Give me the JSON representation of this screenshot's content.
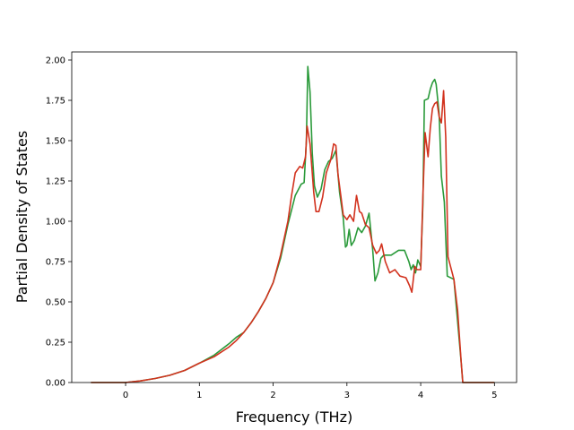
{
  "chart_data": {
    "type": "line",
    "title": "",
    "xlabel": "Frequency (THz)",
    "ylabel": "Partial Density of States",
    "xlim": [
      -0.73,
      5.3
    ],
    "ylim": [
      0,
      2.05
    ],
    "grid": false,
    "legend": "none",
    "x_ticks": [
      "0",
      "1",
      "2",
      "3",
      "4",
      "5"
    ],
    "y_ticks": [
      "0.00",
      "0.25",
      "0.50",
      "0.75",
      "1.00",
      "1.25",
      "1.50",
      "1.75",
      "2.00"
    ],
    "series": [
      {
        "color": "#2a9a3a",
        "points": [
          [
            -0.47,
            0
          ],
          [
            0,
            0
          ],
          [
            0.2,
            0.01
          ],
          [
            0.4,
            0.025
          ],
          [
            0.6,
            0.045
          ],
          [
            0.8,
            0.075
          ],
          [
            1.0,
            0.12
          ],
          [
            1.2,
            0.17
          ],
          [
            1.4,
            0.24
          ],
          [
            1.5,
            0.28
          ],
          [
            1.6,
            0.31
          ],
          [
            1.7,
            0.37
          ],
          [
            1.8,
            0.44
          ],
          [
            1.9,
            0.52
          ],
          [
            2.0,
            0.62
          ],
          [
            2.1,
            0.77
          ],
          [
            2.2,
            0.98
          ],
          [
            2.3,
            1.16
          ],
          [
            2.38,
            1.23
          ],
          [
            2.42,
            1.24
          ],
          [
            2.45,
            1.5
          ],
          [
            2.47,
            1.96
          ],
          [
            2.5,
            1.8
          ],
          [
            2.53,
            1.42
          ],
          [
            2.56,
            1.22
          ],
          [
            2.6,
            1.15
          ],
          [
            2.65,
            1.2
          ],
          [
            2.7,
            1.32
          ],
          [
            2.75,
            1.37
          ],
          [
            2.8,
            1.39
          ],
          [
            2.85,
            1.44
          ],
          [
            2.9,
            1.18
          ],
          [
            2.95,
            1.02
          ],
          [
            2.98,
            0.84
          ],
          [
            3.0,
            0.85
          ],
          [
            3.03,
            0.95
          ],
          [
            3.06,
            0.85
          ],
          [
            3.1,
            0.88
          ],
          [
            3.15,
            0.96
          ],
          [
            3.2,
            0.93
          ],
          [
            3.25,
            0.97
          ],
          [
            3.3,
            1.05
          ],
          [
            3.35,
            0.82
          ],
          [
            3.38,
            0.63
          ],
          [
            3.42,
            0.68
          ],
          [
            3.46,
            0.77
          ],
          [
            3.5,
            0.79
          ],
          [
            3.6,
            0.79
          ],
          [
            3.7,
            0.82
          ],
          [
            3.78,
            0.82
          ],
          [
            3.84,
            0.75
          ],
          [
            3.87,
            0.7
          ],
          [
            3.9,
            0.73
          ],
          [
            3.93,
            0.68
          ],
          [
            3.96,
            0.76
          ],
          [
            4.0,
            0.72
          ],
          [
            4.03,
            1.1
          ],
          [
            4.05,
            1.75
          ],
          [
            4.1,
            1.76
          ],
          [
            4.13,
            1.82
          ],
          [
            4.16,
            1.86
          ],
          [
            4.19,
            1.88
          ],
          [
            4.21,
            1.85
          ],
          [
            4.25,
            1.67
          ],
          [
            4.28,
            1.28
          ],
          [
            4.32,
            1.12
          ],
          [
            4.36,
            0.66
          ],
          [
            4.45,
            0.64
          ],
          [
            4.5,
            0.38
          ],
          [
            4.55,
            0.12
          ],
          [
            4.57,
            0
          ],
          [
            5.0,
            0
          ]
        ]
      },
      {
        "color": "#d2321e",
        "points": [
          [
            -0.47,
            0
          ],
          [
            0,
            0
          ],
          [
            0.2,
            0.01
          ],
          [
            0.4,
            0.025
          ],
          [
            0.6,
            0.045
          ],
          [
            0.8,
            0.075
          ],
          [
            1.0,
            0.12
          ],
          [
            1.2,
            0.16
          ],
          [
            1.4,
            0.22
          ],
          [
            1.5,
            0.26
          ],
          [
            1.6,
            0.31
          ],
          [
            1.7,
            0.37
          ],
          [
            1.8,
            0.44
          ],
          [
            1.9,
            0.52
          ],
          [
            2.0,
            0.62
          ],
          [
            2.1,
            0.79
          ],
          [
            2.2,
            1.0
          ],
          [
            2.25,
            1.16
          ],
          [
            2.3,
            1.3
          ],
          [
            2.36,
            1.34
          ],
          [
            2.4,
            1.33
          ],
          [
            2.44,
            1.4
          ],
          [
            2.46,
            1.59
          ],
          [
            2.5,
            1.48
          ],
          [
            2.55,
            1.18
          ],
          [
            2.58,
            1.06
          ],
          [
            2.62,
            1.06
          ],
          [
            2.67,
            1.15
          ],
          [
            2.72,
            1.3
          ],
          [
            2.78,
            1.38
          ],
          [
            2.82,
            1.48
          ],
          [
            2.85,
            1.47
          ],
          [
            2.88,
            1.29
          ],
          [
            2.92,
            1.15
          ],
          [
            2.95,
            1.04
          ],
          [
            3.0,
            1.01
          ],
          [
            3.04,
            1.04
          ],
          [
            3.09,
            1.0
          ],
          [
            3.13,
            1.16
          ],
          [
            3.17,
            1.06
          ],
          [
            3.2,
            1.05
          ],
          [
            3.25,
            0.98
          ],
          [
            3.3,
            0.96
          ],
          [
            3.35,
            0.85
          ],
          [
            3.4,
            0.8
          ],
          [
            3.44,
            0.82
          ],
          [
            3.47,
            0.86
          ],
          [
            3.52,
            0.75
          ],
          [
            3.58,
            0.68
          ],
          [
            3.65,
            0.7
          ],
          [
            3.72,
            0.66
          ],
          [
            3.8,
            0.65
          ],
          [
            3.85,
            0.6
          ],
          [
            3.88,
            0.56
          ],
          [
            3.92,
            0.72
          ],
          [
            3.95,
            0.7
          ],
          [
            4.0,
            0.7
          ],
          [
            4.03,
            1.15
          ],
          [
            4.06,
            1.55
          ],
          [
            4.1,
            1.4
          ],
          [
            4.13,
            1.58
          ],
          [
            4.16,
            1.7
          ],
          [
            4.19,
            1.73
          ],
          [
            4.22,
            1.74
          ],
          [
            4.25,
            1.65
          ],
          [
            4.28,
            1.61
          ],
          [
            4.31,
            1.81
          ],
          [
            4.34,
            1.52
          ],
          [
            4.37,
            0.78
          ],
          [
            4.45,
            0.64
          ],
          [
            4.5,
            0.45
          ],
          [
            4.55,
            0.12
          ],
          [
            4.57,
            0
          ],
          [
            5.0,
            0
          ]
        ]
      }
    ]
  }
}
